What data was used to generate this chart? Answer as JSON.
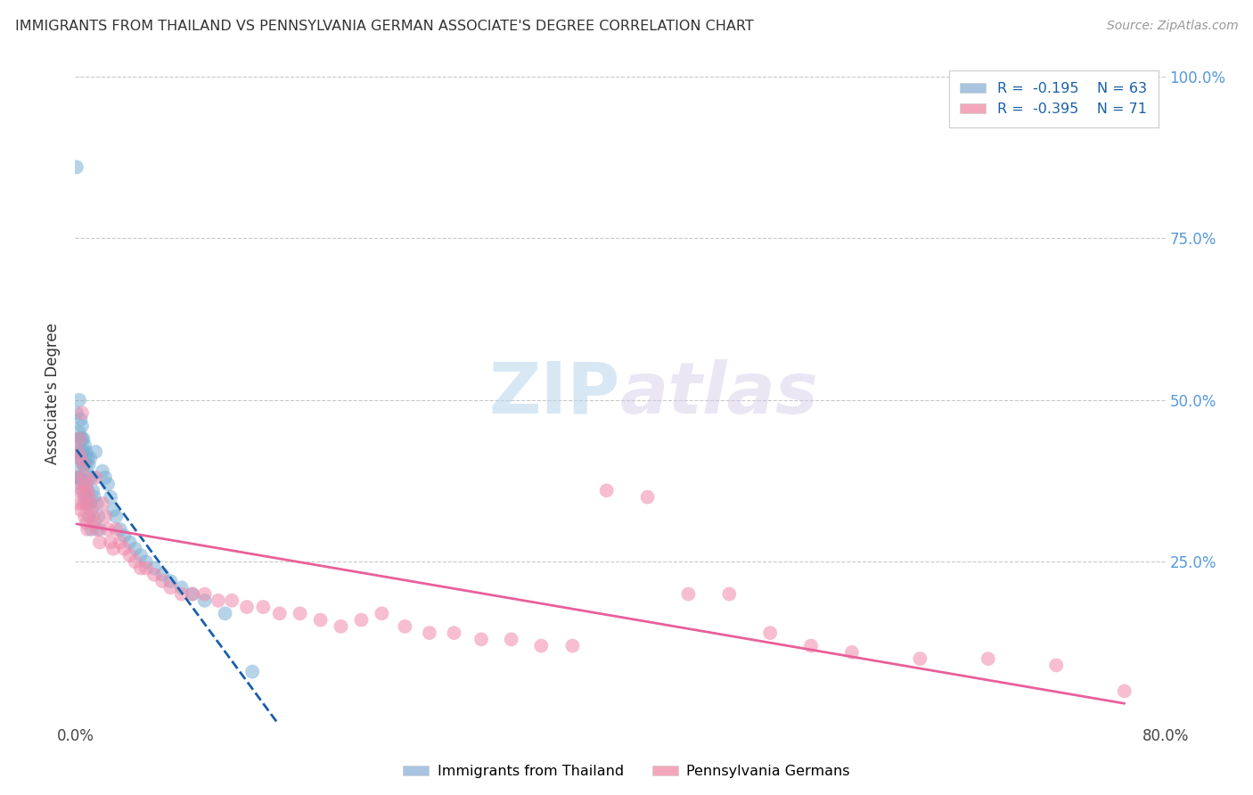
{
  "title": "IMMIGRANTS FROM THAILAND VS PENNSYLVANIA GERMAN ASSOCIATE'S DEGREE CORRELATION CHART",
  "source": "Source: ZipAtlas.com",
  "ylabel": "Associate's Degree",
  "series1_color": "#7bafd4",
  "series2_color": "#f08aaa",
  "trendline1_color": "#1a5fa8",
  "trendline2_color": "#e8609a",
  "background_color": "#ffffff",
  "xmin": 0.0,
  "xmax": 0.8,
  "ymin": 0.0,
  "ymax": 1.02,
  "series1_x": [
    0.001,
    0.001,
    0.001,
    0.002,
    0.002,
    0.002,
    0.002,
    0.003,
    0.003,
    0.003,
    0.003,
    0.004,
    0.004,
    0.004,
    0.005,
    0.005,
    0.005,
    0.005,
    0.006,
    0.006,
    0.006,
    0.006,
    0.007,
    0.007,
    0.007,
    0.008,
    0.008,
    0.008,
    0.009,
    0.009,
    0.01,
    0.01,
    0.01,
    0.011,
    0.011,
    0.012,
    0.012,
    0.013,
    0.014,
    0.015,
    0.016,
    0.017,
    0.018,
    0.02,
    0.022,
    0.024,
    0.026,
    0.028,
    0.03,
    0.033,
    0.036,
    0.04,
    0.044,
    0.048,
    0.052,
    0.058,
    0.064,
    0.07,
    0.078,
    0.086,
    0.095,
    0.11,
    0.13
  ],
  "series1_y": [
    0.86,
    0.48,
    0.42,
    0.44,
    0.42,
    0.4,
    0.38,
    0.5,
    0.45,
    0.41,
    0.38,
    0.47,
    0.44,
    0.38,
    0.46,
    0.44,
    0.42,
    0.37,
    0.44,
    0.42,
    0.4,
    0.36,
    0.43,
    0.41,
    0.35,
    0.42,
    0.4,
    0.34,
    0.41,
    0.36,
    0.4,
    0.38,
    0.32,
    0.41,
    0.34,
    0.38,
    0.3,
    0.36,
    0.35,
    0.42,
    0.34,
    0.32,
    0.3,
    0.39,
    0.38,
    0.37,
    0.35,
    0.33,
    0.32,
    0.3,
    0.29,
    0.28,
    0.27,
    0.26,
    0.25,
    0.24,
    0.23,
    0.22,
    0.21,
    0.2,
    0.19,
    0.17,
    0.08
  ],
  "series2_x": [
    0.001,
    0.002,
    0.002,
    0.003,
    0.003,
    0.004,
    0.004,
    0.005,
    0.005,
    0.006,
    0.006,
    0.007,
    0.007,
    0.008,
    0.008,
    0.009,
    0.009,
    0.01,
    0.011,
    0.012,
    0.013,
    0.014,
    0.015,
    0.016,
    0.018,
    0.02,
    0.022,
    0.024,
    0.026,
    0.028,
    0.03,
    0.033,
    0.036,
    0.04,
    0.044,
    0.048,
    0.052,
    0.058,
    0.064,
    0.07,
    0.078,
    0.086,
    0.095,
    0.105,
    0.115,
    0.126,
    0.138,
    0.15,
    0.165,
    0.18,
    0.195,
    0.21,
    0.225,
    0.242,
    0.26,
    0.278,
    0.298,
    0.32,
    0.342,
    0.365,
    0.39,
    0.42,
    0.45,
    0.48,
    0.51,
    0.54,
    0.57,
    0.62,
    0.67,
    0.72,
    0.77
  ],
  "series2_y": [
    0.38,
    0.42,
    0.36,
    0.44,
    0.34,
    0.41,
    0.33,
    0.48,
    0.36,
    0.4,
    0.34,
    0.38,
    0.32,
    0.37,
    0.31,
    0.36,
    0.3,
    0.35,
    0.34,
    0.33,
    0.32,
    0.31,
    0.38,
    0.3,
    0.28,
    0.34,
    0.32,
    0.3,
    0.28,
    0.27,
    0.3,
    0.28,
    0.27,
    0.26,
    0.25,
    0.24,
    0.24,
    0.23,
    0.22,
    0.21,
    0.2,
    0.2,
    0.2,
    0.19,
    0.19,
    0.18,
    0.18,
    0.17,
    0.17,
    0.16,
    0.15,
    0.16,
    0.17,
    0.15,
    0.14,
    0.14,
    0.13,
    0.13,
    0.12,
    0.12,
    0.36,
    0.35,
    0.2,
    0.2,
    0.14,
    0.12,
    0.11,
    0.1,
    0.1,
    0.09,
    0.05
  ]
}
